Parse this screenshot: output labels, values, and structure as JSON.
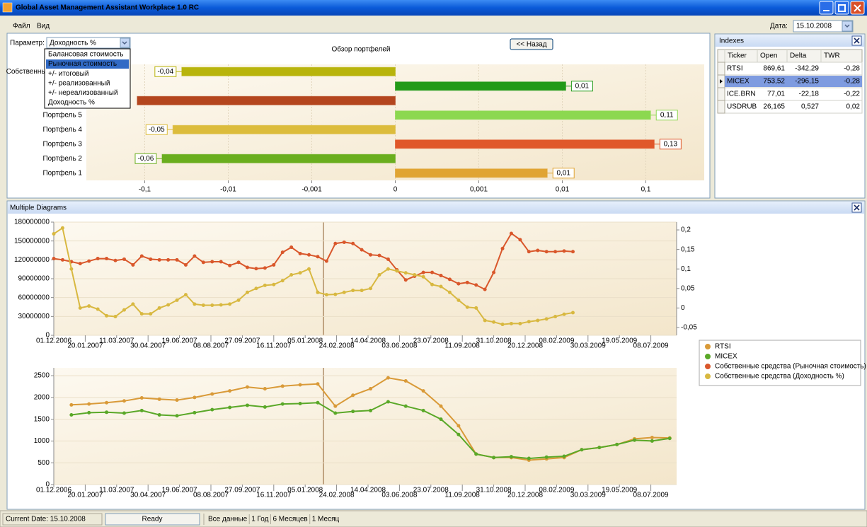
{
  "window": {
    "title": "Global Asset Management Assistant Workplace 1.0 RC"
  },
  "menu": [
    "Файл",
    "Вид"
  ],
  "date": {
    "label": "Дата:",
    "value": "15.10.2008"
  },
  "parameter": {
    "label": "Параметр:",
    "selected": "Доходность %",
    "options": [
      "Балансовая стоимость",
      "Рыночная стоимость",
      "+/- итоговый",
      "+/- реализованный",
      "+/- нереализованный",
      "Доходность %"
    ],
    "highlighted": 1
  },
  "back_button": "<< Назад",
  "portfolio_chart": {
    "type": "bar",
    "orientation": "horizontal",
    "title": "Обзор портфелей",
    "categories": [
      "Собственные средства",
      null,
      null,
      "Портфель 5",
      "Портфель 4",
      "Портфель 3",
      "Портфель 2",
      "Портфель 1"
    ],
    "values": [
      -0.036,
      0.011,
      -0.123,
      0.114,
      -0.046,
      0.126,
      -0.062,
      0.0066
    ],
    "value_labels": [
      "-0,04",
      "0,01",
      null,
      "0,11",
      "-0,05",
      "0,13",
      "-0,06",
      "0,01"
    ],
    "colors": [
      "#b8b40c",
      "#229a18",
      "#b4461e",
      "#8cd850",
      "#dcbc3c",
      "#e0582a",
      "#6aae1e",
      "#e0a432"
    ],
    "xscale": "symlog",
    "linthresh": 0.001,
    "xlim": [
      -0.5,
      0.5
    ],
    "xticks": [
      {
        "value": -0.1,
        "label": "-0,1"
      },
      {
        "value": -0.01,
        "label": "-0,01"
      },
      {
        "value": -0.001,
        "label": "-0,001"
      },
      0,
      {
        "value": 0.001,
        "label": "0,001"
      },
      {
        "value": 0.01,
        "label": "0,01"
      },
      {
        "value": 0.1,
        "label": "0,1"
      }
    ],
    "grid": true
  },
  "indexes": {
    "title": "Indexes",
    "columns": [
      "Ticker",
      "Open",
      "Delta",
      "TWR"
    ],
    "rows": [
      [
        "RTSI",
        "869,61",
        "-342,29",
        "-0,28"
      ],
      [
        "MICEX",
        "753,52",
        "-296,15",
        "-0,28"
      ],
      [
        "ICE.BRN",
        "77,01",
        "-22,18",
        "-0,22"
      ],
      [
        "USDRUB",
        "26,165",
        "0,527",
        "0,02"
      ]
    ],
    "selected_row": 1
  },
  "multiple_diagrams": {
    "title": "Multiple Diagrams",
    "legend": "right",
    "charts": [
      {
        "type": "line",
        "x": [
          "01.12.2006",
          "15.12.2006",
          "29.12.2006",
          "12.01.2007",
          "26.01.2007",
          "09.02.2007",
          "23.02.2007",
          "09.03.2007",
          "23.03.2007",
          "06.04.2007",
          "20.04.2007",
          "04.05.2007",
          "18.05.2007",
          "01.06.2007",
          "15.06.2007",
          "29.06.2007",
          "13.07.2007",
          "27.07.2007",
          "10.08.2007",
          "24.08.2007",
          "07.09.2007",
          "21.09.2007",
          "05.10.2007",
          "19.10.2007",
          "02.11.2007",
          "16.11.2007",
          "30.11.2007",
          "14.12.2007",
          "28.12.2007",
          "11.01.2008",
          "25.01.2008",
          "08.02.2008",
          "22.02.2008",
          "07.03.2008",
          "21.03.2008",
          "04.04.2008",
          "18.04.2008",
          "02.05.2008",
          "16.05.2008",
          "30.05.2008",
          "13.06.2008",
          "27.06.2008",
          "11.07.2008",
          "25.07.2008",
          "08.08.2008",
          "22.08.2008",
          "05.09.2008",
          "19.09.2008",
          "03.10.2008",
          "17.10.2008",
          "31.10.2008",
          "14.11.2008",
          "28.11.2008",
          "12.12.2008",
          "26.12.2008",
          "09.01.2009",
          "23.01.2009",
          "06.02.2009",
          "20.02.2009",
          "06.03.2009"
        ],
        "xlim": [
          "01.12.2006",
          "18.08.2009"
        ],
        "xticks": [
          "01.12.2006",
          "20.01.2007",
          "11.03.2007",
          "30.04.2007",
          "19.06.2007",
          "08.08.2007",
          "27.09.2007",
          "16.11.2007",
          "05.01.2008",
          "24.02.2008",
          "14.04.2008",
          "03.06.2008",
          "23.07.2008",
          "11.09.2008",
          "31.10.2008",
          "20.12.2008",
          "08.02.2009",
          "30.03.2009",
          "19.05.2009",
          "08.07.2009"
        ],
        "ylim": [
          0,
          180000000
        ],
        "yticks": [
          0,
          30000000,
          60000000,
          90000000,
          120000000,
          150000000,
          180000000
        ],
        "y2lim": [
          -0.07,
          0.22
        ],
        "y2ticks": [
          {
            "value": -0.05,
            "label": "-0,05"
          },
          0,
          {
            "value": 0.05,
            "label": "0,05"
          },
          {
            "value": 0.1,
            "label": "0,1"
          },
          {
            "value": 0.15,
            "label": "0,15"
          },
          {
            "value": 0.2,
            "label": "0,2"
          }
        ],
        "series": [
          {
            "name": "Собственные средства (Рыночная стоимость)",
            "color": "#d9572b",
            "axis": "y",
            "values": [
              122000000,
              120000000,
              117000000,
              114000000,
              118000000,
              122000000,
              122000000,
              119000000,
              121000000,
              112000000,
              126000000,
              121000000,
              120000000,
              120000000,
              120000000,
              112000000,
              126000000,
              116000000,
              117000000,
              117000000,
              111000000,
              116000000,
              108000000,
              106000000,
              107000000,
              112000000,
              132000000,
              140000000,
              130000000,
              128000000,
              125000000,
              118000000,
              146000000,
              148000000,
              146000000,
              136000000,
              128000000,
              127000000,
              121000000,
              104000000,
              88000000,
              94000000,
              100000000,
              100000000,
              95000000,
              89000000,
              82000000,
              84000000,
              80000000,
              73000000,
              100000000,
              138000000,
              162000000,
              152000000,
              133000000,
              135000000,
              133000000,
              133000000,
              134000000,
              133000000
            ]
          },
          {
            "name": "Собственные средства (Доходность %)",
            "color": "#d8b840",
            "axis": "y2",
            "values": [
              0.19,
              0.205,
              0.1,
              0.0,
              0.005,
              -0.003,
              -0.02,
              -0.022,
              -0.005,
              0.01,
              -0.015,
              -0.015,
              0.0,
              0.008,
              0.02,
              0.034,
              0.01,
              0.007,
              0.007,
              0.008,
              0.01,
              0.02,
              0.04,
              0.05,
              0.058,
              0.06,
              0.07,
              0.085,
              0.09,
              0.1,
              0.04,
              0.034,
              0.035,
              0.04,
              0.045,
              0.045,
              0.05,
              0.085,
              0.1,
              0.095,
              0.09,
              0.085,
              0.08,
              0.06,
              0.055,
              0.04,
              0.02,
              0.002,
              0.0,
              -0.032,
              -0.036,
              -0.042,
              -0.04,
              -0.04,
              -0.035,
              -0.032,
              -0.028,
              -0.022,
              -0.016,
              -0.012
            ]
          }
        ]
      },
      {
        "type": "line",
        "x": [
          "29.12.2006",
          "26.01.2007",
          "23.02.2007",
          "23.03.2007",
          "20.04.2007",
          "18.05.2007",
          "15.06.2007",
          "13.07.2007",
          "10.08.2007",
          "07.09.2007",
          "05.10.2007",
          "02.11.2007",
          "30.11.2007",
          "28.12.2007",
          "25.01.2008",
          "22.02.2008",
          "21.03.2008",
          "18.04.2008",
          "16.05.2008",
          "13.06.2008",
          "11.07.2008",
          "08.08.2008",
          "05.09.2008",
          "03.10.2008",
          "31.10.2008",
          "28.11.2008",
          "26.12.2008",
          "23.01.2009",
          "20.02.2009",
          "20.03.2009",
          "17.04.2009",
          "15.05.2009",
          "12.06.2009",
          "10.07.2009",
          "07.08.2009"
        ],
        "xlim": [
          "01.12.2006",
          "18.08.2009"
        ],
        "xticks": [
          "01.12.2006",
          "20.01.2007",
          "11.03.2007",
          "30.04.2007",
          "19.06.2007",
          "08.08.2007",
          "27.09.2007",
          "16.11.2007",
          "05.01.2008",
          "24.02.2008",
          "14.04.2008",
          "03.06.2008",
          "23.07.2008",
          "11.09.2008",
          "31.10.2008",
          "20.12.2008",
          "08.02.2009",
          "30.03.2009",
          "19.05.2009",
          "08.07.2009"
        ],
        "ylim": [
          0,
          2680
        ],
        "yticks": [
          0,
          500,
          1000,
          1500,
          2000,
          2500
        ],
        "series": [
          {
            "name": "RTSI",
            "color": "#d99a38",
            "axis": "y",
            "values": [
              1830,
              1850,
              1880,
              1920,
              1990,
              1960,
              1940,
              2000,
              2080,
              2150,
              2240,
              2200,
              2260,
              2290,
              2310,
              1800,
              2050,
              2200,
              2450,
              2380,
              2150,
              1800,
              1350,
              700,
              620,
              620,
              560,
              590,
              620,
              800,
              850,
              920,
              1050,
              1080,
              1070
            ]
          },
          {
            "name": "MICEX",
            "color": "#5aa828",
            "axis": "y",
            "values": [
              1600,
              1650,
              1660,
              1640,
              1700,
              1600,
              1580,
              1650,
              1720,
              1770,
              1820,
              1780,
              1850,
              1860,
              1880,
              1640,
              1680,
              1700,
              1900,
              1800,
              1700,
              1500,
              1150,
              700,
              620,
              640,
              600,
              630,
              650,
              800,
              850,
              920,
              1020,
              1000,
              1060
            ]
          }
        ]
      }
    ]
  },
  "status": {
    "current_date": "Current Date: 15.10.2008",
    "state": "Ready",
    "periods": [
      "Все данные",
      "1 Год",
      "6 Месяцев",
      "1 Месяц"
    ]
  }
}
